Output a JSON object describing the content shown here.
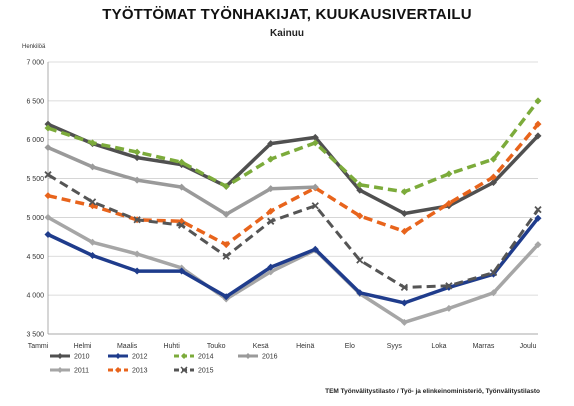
{
  "chart_data": {
    "type": "line",
    "title": "TYÖTTÖMAT TYÖNHAKIJAT, KUUKAUSIVERTAILU",
    "subtitle": "Kainuu",
    "ylabel": "Henkilöä",
    "xlabel": "",
    "categories": [
      "Tammi",
      "Helmi",
      "Maalis",
      "Huhti",
      "Touko",
      "Kesä",
      "Heinä",
      "Elo",
      "Syys",
      "Loka",
      "Marras",
      "Joulu"
    ],
    "ylim": [
      3500,
      7000
    ],
    "yticks": [
      3500,
      4000,
      4500,
      5000,
      5500,
      6000,
      6500,
      7000
    ],
    "ytick_labels": [
      "3 500",
      "4 000",
      "4 500",
      "5 000",
      "5 500",
      "6 000",
      "6 500",
      "7 000"
    ],
    "grid": true,
    "legend_position": "bottom-left",
    "series": [
      {
        "name": "2010",
        "color": "#505050",
        "dash": "solid",
        "marker": "diamond",
        "width": 3.5,
        "values": [
          6200,
          5950,
          5770,
          5680,
          5400,
          5950,
          6030,
          5350,
          5050,
          5150,
          5450,
          6050
        ]
      },
      {
        "name": "2011",
        "color": "#a6a6a6",
        "dash": "solid",
        "marker": "diamond",
        "width": 3.5,
        "values": [
          5000,
          4680,
          4530,
          4350,
          3950,
          4300,
          4580,
          4020,
          3650,
          3830,
          4030,
          4650
        ]
      },
      {
        "name": "2012",
        "color": "#1f3c8c",
        "dash": "solid",
        "marker": "diamond",
        "width": 3.5,
        "values": [
          4780,
          4510,
          4310,
          4310,
          3980,
          4360,
          4590,
          4030,
          3900,
          4100,
          4270,
          4990
        ]
      },
      {
        "name": "2013",
        "color": "#e8641c",
        "dash": "dashed",
        "marker": "diamond",
        "width": 3.5,
        "values": [
          5280,
          5150,
          4970,
          4950,
          4650,
          5080,
          5380,
          5020,
          4820,
          5180,
          5520,
          6200
        ]
      },
      {
        "name": "2014",
        "color": "#7cab3b",
        "dash": "dashed",
        "marker": "diamond",
        "width": 3.5,
        "values": [
          6150,
          5960,
          5840,
          5710,
          5400,
          5750,
          5960,
          5420,
          5330,
          5560,
          5750,
          6500
        ]
      },
      {
        "name": "2015",
        "color": "#555555",
        "dash": "dashed",
        "marker": "x",
        "width": 3,
        "values": [
          5550,
          5200,
          4970,
          4900,
          4500,
          4950,
          5150,
          4450,
          4100,
          4120,
          4290,
          5100
        ]
      },
      {
        "name": "2016",
        "color": "#9a9a9a",
        "dash": "solid",
        "marker": "diamond",
        "width": 3.5,
        "values": [
          5900,
          5650,
          5480,
          5390,
          5040,
          5370,
          5390,
          null,
          null,
          null,
          null,
          null
        ]
      }
    ],
    "legend_rows": [
      [
        "2010",
        "2012",
        "2014",
        "2016"
      ],
      [
        "2011",
        "2013",
        "2015"
      ]
    ],
    "legend_labels": {
      "2010": "2010",
      "2011": "2011",
      "2012": "2012",
      "2013": "2013",
      "2014": "2014",
      "2015": "2015",
      "2016": "2016"
    },
    "legend_markers": {
      "2015": "- x - "
    },
    "source": "TEM Työnvälitystilasto / Työ- ja elinkeinoministeriö, Työnvälitystilasto"
  }
}
